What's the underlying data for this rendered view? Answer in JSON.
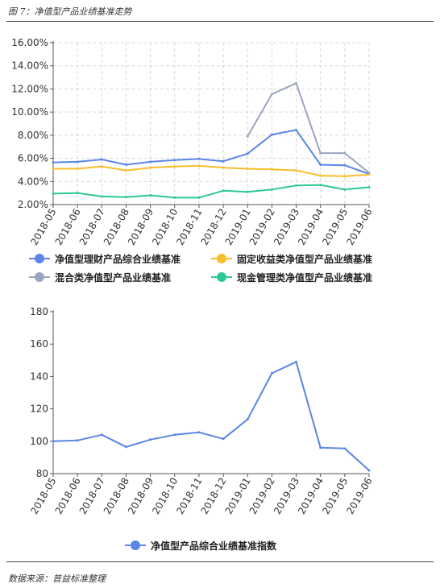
{
  "figure": {
    "caption": "图 7：净值型产品业绩基准走势",
    "source": "数据来源：普益标准整理"
  },
  "colors": {
    "blue": "#5b86e5",
    "yellow": "#f7bd2b",
    "gray": "#9aa6bf",
    "green": "#2ec992",
    "grid": "#d9d9d9",
    "axis": "#555555"
  },
  "chart_data": [
    {
      "type": "line",
      "x": [
        "2018-05",
        "2018-06",
        "2018-07",
        "2018-08",
        "2018-09",
        "2018-10",
        "2018-11",
        "2018-12",
        "2019-01",
        "2019-02",
        "2019-03",
        "2019-04",
        "2019-05",
        "2019-06"
      ],
      "ylim": [
        2,
        16
      ],
      "yticks": [
        2,
        4,
        6,
        8,
        10,
        12,
        14,
        16
      ],
      "ytick_labels": [
        "2.00%",
        "4.00%",
        "6.00%",
        "8.00%",
        "10.00%",
        "12.00%",
        "14.00%",
        "16.00%"
      ],
      "grid": true,
      "legend_position": "bottom",
      "series": [
        {
          "name": "净值型理财产品综合业绩基准",
          "color": "blue",
          "values": [
            5.65,
            5.7,
            5.9,
            5.45,
            5.7,
            5.85,
            5.95,
            5.75,
            6.4,
            8.05,
            8.45,
            5.45,
            5.4,
            4.65
          ]
        },
        {
          "name": "固定收益类净值型产品业绩基准",
          "color": "yellow",
          "values": [
            5.1,
            5.1,
            5.3,
            4.95,
            5.2,
            5.3,
            5.35,
            5.2,
            5.1,
            5.05,
            4.95,
            4.5,
            4.45,
            4.6
          ]
        },
        {
          "name": "混合类净值型产品业绩基准",
          "color": "gray",
          "values": [
            null,
            null,
            null,
            null,
            null,
            null,
            null,
            null,
            7.9,
            11.55,
            12.5,
            6.45,
            6.45,
            4.75
          ]
        },
        {
          "name": "现金管理类净值型产品业绩基准",
          "color": "green",
          "values": [
            2.95,
            3.0,
            2.7,
            2.65,
            2.8,
            2.6,
            2.6,
            3.2,
            3.1,
            3.3,
            3.65,
            3.7,
            3.3,
            3.5
          ]
        }
      ]
    },
    {
      "type": "line",
      "x": [
        "2018-05",
        "2018-06",
        "2018-07",
        "2018-08",
        "2018-09",
        "2018-10",
        "2018-11",
        "2018-12",
        "2019-01",
        "2019-02",
        "2019-03",
        "2019-04",
        "2019-05",
        "2019-06"
      ],
      "ylim": [
        80,
        180
      ],
      "yticks": [
        80,
        100,
        120,
        140,
        160,
        180
      ],
      "ytick_labels": [
        "80",
        "100",
        "120",
        "140",
        "160",
        "180"
      ],
      "grid": false,
      "legend_position": "bottom",
      "series": [
        {
          "name": "净值型产品综合业绩基准指数",
          "color": "blue",
          "values": [
            100,
            100.5,
            104,
            96.5,
            101,
            104,
            105.5,
            101.5,
            113.5,
            142,
            149,
            96,
            95.5,
            82
          ]
        }
      ]
    }
  ]
}
